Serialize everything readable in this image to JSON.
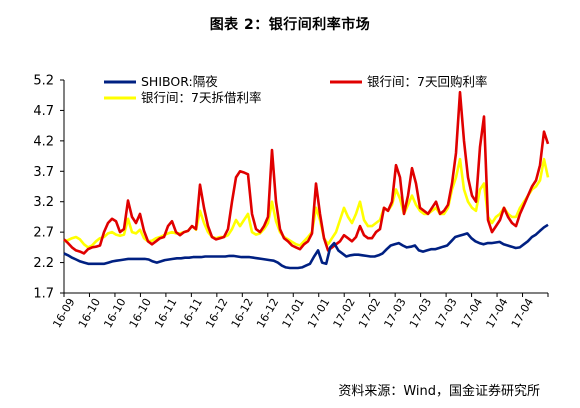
{
  "chart_data": {
    "type": "line",
    "title": "图表 2：银行间利率市场",
    "source": "资料来源：Wind，国金证券研究所",
    "ylim": [
      1.7,
      5.2
    ],
    "yticks": [
      "5.2",
      "4.7",
      "4.2",
      "3.7",
      "3.2",
      "2.7",
      "2.2",
      "1.7"
    ],
    "xticks": [
      "16-09",
      "16-10",
      "16-10",
      "16-10",
      "16-11",
      "16-11",
      "16-12",
      "16-12",
      "16-12",
      "17-01",
      "17-01",
      "17-02",
      "17-02",
      "17-03",
      "17-03",
      "17-03",
      "17-04",
      "17-04",
      "17-04"
    ],
    "grid": false,
    "legend": "top",
    "colors": {
      "shibor": "#002082",
      "repo": "#e00000",
      "lending": "#ffff00"
    },
    "series": [
      {
        "name": "SHIBOR:隔夜",
        "key": "shibor",
        "values": [
          2.35,
          2.32,
          2.28,
          2.25,
          2.22,
          2.2,
          2.18,
          2.18,
          2.18,
          2.18,
          2.18,
          2.2,
          2.22,
          2.23,
          2.24,
          2.25,
          2.26,
          2.26,
          2.26,
          2.26,
          2.26,
          2.25,
          2.22,
          2.2,
          2.22,
          2.24,
          2.25,
          2.26,
          2.27,
          2.27,
          2.28,
          2.28,
          2.29,
          2.29,
          2.29,
          2.3,
          2.3,
          2.3,
          2.3,
          2.3,
          2.3,
          2.31,
          2.31,
          2.3,
          2.29,
          2.29,
          2.29,
          2.28,
          2.27,
          2.26,
          2.25,
          2.24,
          2.23,
          2.2,
          2.15,
          2.12,
          2.11,
          2.11,
          2.11,
          2.12,
          2.15,
          2.18,
          2.3,
          2.4,
          2.2,
          2.18,
          2.45,
          2.52,
          2.4,
          2.35,
          2.3,
          2.32,
          2.33,
          2.33,
          2.32,
          2.31,
          2.3,
          2.3,
          2.32,
          2.35,
          2.42,
          2.48,
          2.5,
          2.52,
          2.48,
          2.45,
          2.46,
          2.48,
          2.4,
          2.38,
          2.4,
          2.42,
          2.42,
          2.44,
          2.46,
          2.48,
          2.55,
          2.62,
          2.64,
          2.66,
          2.68,
          2.6,
          2.55,
          2.52,
          2.5,
          2.52,
          2.52,
          2.53,
          2.54,
          2.5,
          2.48,
          2.46,
          2.44,
          2.45,
          2.5,
          2.55,
          2.62,
          2.66,
          2.72,
          2.78,
          2.82
        ]
      },
      {
        "name": "银行间：7天回购利率",
        "key": "repo",
        "values": [
          2.58,
          2.52,
          2.45,
          2.4,
          2.38,
          2.35,
          2.42,
          2.45,
          2.46,
          2.48,
          2.7,
          2.85,
          2.92,
          2.88,
          2.7,
          2.75,
          3.22,
          2.95,
          2.85,
          3.0,
          2.72,
          2.55,
          2.5,
          2.55,
          2.6,
          2.62,
          2.8,
          2.88,
          2.7,
          2.65,
          2.7,
          2.72,
          2.8,
          2.75,
          3.48,
          3.1,
          2.8,
          2.62,
          2.58,
          2.6,
          2.62,
          2.75,
          3.2,
          3.6,
          3.7,
          3.68,
          3.65,
          3.0,
          2.75,
          2.7,
          2.8,
          2.95,
          4.05,
          3.2,
          2.75,
          2.6,
          2.55,
          2.48,
          2.45,
          2.42,
          2.5,
          2.55,
          2.68,
          3.5,
          3.0,
          2.6,
          2.4,
          2.45,
          2.5,
          2.55,
          2.65,
          2.6,
          2.55,
          2.62,
          2.8,
          2.65,
          2.6,
          2.6,
          2.7,
          2.75,
          3.1,
          3.05,
          3.2,
          3.8,
          3.6,
          3.0,
          3.3,
          3.75,
          3.5,
          3.1,
          3.05,
          3.0,
          3.1,
          3.2,
          3.0,
          3.05,
          3.15,
          3.5,
          4.0,
          5.0,
          4.2,
          3.6,
          3.3,
          3.2,
          4.1,
          4.6,
          2.9,
          2.7,
          2.8,
          2.9,
          3.1,
          2.95,
          2.85,
          2.8,
          3.0,
          3.15,
          3.3,
          3.45,
          3.55,
          3.8,
          4.35,
          4.15
        ]
      },
      {
        "name": "银行间：7天拆借利率",
        "key": "lending",
        "values": [
          2.55,
          2.57,
          2.6,
          2.62,
          2.58,
          2.5,
          2.45,
          2.48,
          2.55,
          2.6,
          2.62,
          2.68,
          2.7,
          2.66,
          2.64,
          2.66,
          2.92,
          2.7,
          2.68,
          2.74,
          2.6,
          2.55,
          2.56,
          2.6,
          2.62,
          2.65,
          2.68,
          2.7,
          2.68,
          2.68,
          2.7,
          2.72,
          2.8,
          2.74,
          3.05,
          2.85,
          2.7,
          2.62,
          2.6,
          2.62,
          2.62,
          2.65,
          2.75,
          2.9,
          2.8,
          2.9,
          3.0,
          2.7,
          2.66,
          2.68,
          2.75,
          2.85,
          3.2,
          2.88,
          2.7,
          2.62,
          2.58,
          2.54,
          2.5,
          2.48,
          2.55,
          2.62,
          2.7,
          3.1,
          2.9,
          2.6,
          2.5,
          2.6,
          2.7,
          2.9,
          3.1,
          2.95,
          2.85,
          3.0,
          3.2,
          2.9,
          2.8,
          2.8,
          2.85,
          2.9,
          3.1,
          3.05,
          3.15,
          3.4,
          3.25,
          3.0,
          3.15,
          3.3,
          3.15,
          3.05,
          3.0,
          3.0,
          3.05,
          3.1,
          3.0,
          3.0,
          3.1,
          3.4,
          3.6,
          3.9,
          3.4,
          3.2,
          3.1,
          3.05,
          3.4,
          3.5,
          2.95,
          2.85,
          2.95,
          3.0,
          3.1,
          3.0,
          2.95,
          2.95,
          3.1,
          3.2,
          3.3,
          3.4,
          3.45,
          3.55,
          3.9,
          3.6
        ]
      }
    ]
  }
}
